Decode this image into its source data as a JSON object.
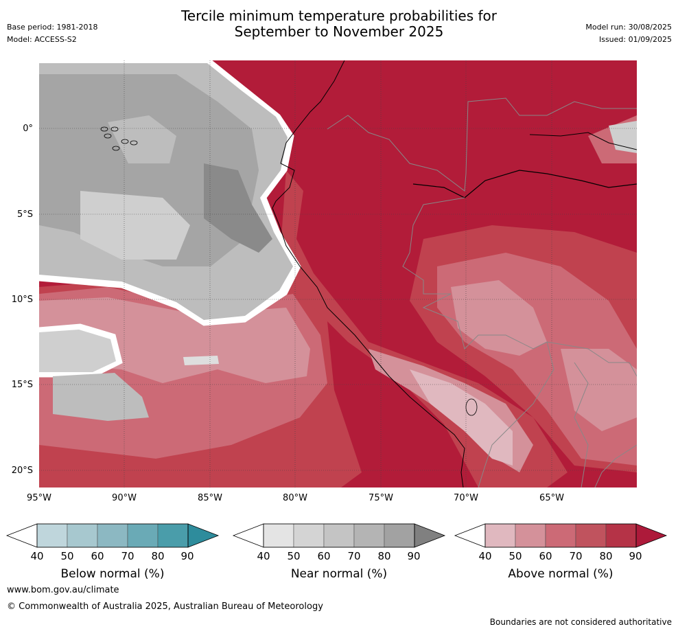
{
  "header": {
    "title_line1": "Tercile minimum temperature probabilities for",
    "title_line2": "September to November 2025",
    "base_period": "Base period: 1981-2018",
    "model": "Model: ACCESS-S2",
    "model_run": "Model run: 30/08/2025",
    "issued": "Issued: 01/09/2025"
  },
  "map": {
    "lat_labels": [
      "0°",
      "5°S",
      "10°S",
      "15°S",
      "20°S"
    ],
    "lon_labels": [
      "95°W",
      "90°W",
      "85°W",
      "80°W",
      "75°W",
      "70°W",
      "65°W"
    ],
    "colors": {
      "above_90": "#b21c39",
      "above_80": "#c0424f",
      "above_70": "#cc6a76",
      "above_60": "#d4919a",
      "above_50": "#e0b8bf",
      "near_90": "#8a8a8a",
      "near_80": "#a5a5a5",
      "near_70": "#bdbdbd",
      "near_60": "#cfcfcf",
      "near_50": "#dedede"
    }
  },
  "colorbars": {
    "below": {
      "label": "Below normal (%)",
      "ticks": [
        "40",
        "50",
        "60",
        "70",
        "80",
        "90"
      ],
      "colors": [
        "#ffffff",
        "#bfd6dc",
        "#a7c8cf",
        "#8cb8c2",
        "#6aaab6",
        "#4a9daa",
        "#2e8c9c"
      ]
    },
    "near": {
      "label": "Near normal (%)",
      "ticks": [
        "40",
        "50",
        "60",
        "70",
        "80",
        "90"
      ],
      "colors": [
        "#ffffff",
        "#e4e4e4",
        "#d4d4d4",
        "#c4c4c4",
        "#b4b4b4",
        "#a2a2a2",
        "#808080"
      ]
    },
    "above": {
      "label": "Above normal (%)",
      "ticks": [
        "40",
        "50",
        "60",
        "70",
        "80",
        "90"
      ],
      "colors": [
        "#ffffff",
        "#e0b8bf",
        "#d4919a",
        "#cc6a76",
        "#c0535e",
        "#b53347",
        "#ad1a3a"
      ]
    }
  },
  "footer": {
    "website": "www.bom.gov.au/climate",
    "copyright": "© Commonwealth of Australia 2025, Australian Bureau of Meteorology",
    "disclaimer": "Boundaries are not considered authoritative"
  }
}
